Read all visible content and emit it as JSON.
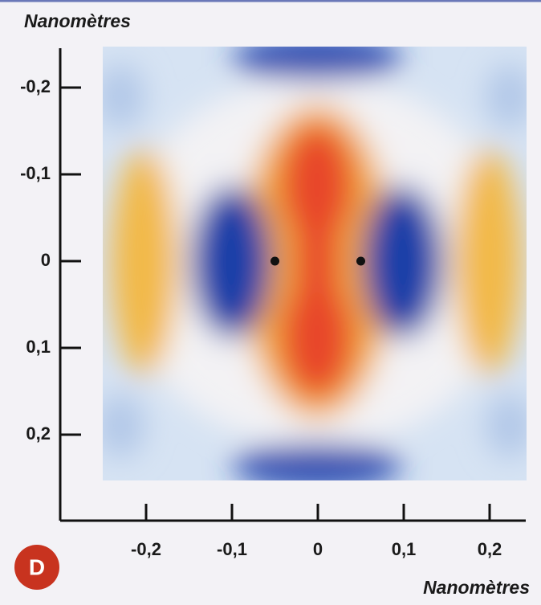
{
  "chart_data": {
    "type": "scatter",
    "x_label": "Nanomètres",
    "y_label": "Nanomètres",
    "badge": "D",
    "xlim": [
      -0.3,
      0.25
    ],
    "ylim": [
      -0.25,
      0.3
    ],
    "y_inverted": true,
    "xticks": [
      {
        "value": -0.2,
        "label": "-0,2"
      },
      {
        "value": -0.1,
        "label": "-0,1"
      },
      0,
      {
        "value": 0.1,
        "label": "0,1"
      },
      {
        "value": 0.2,
        "label": "0,2"
      }
    ],
    "yticks": [
      {
        "value": -0.2,
        "label": "-0,2"
      },
      {
        "value": -0.1,
        "label": "-0,1"
      },
      0,
      {
        "value": 0.1,
        "label": "0,1"
      },
      {
        "value": 0.2,
        "label": "0,2"
      }
    ],
    "points": {
      "x": [
        -0.05,
        0.05
      ],
      "y": [
        0,
        0
      ],
      "color": "#111111"
    }
  }
}
